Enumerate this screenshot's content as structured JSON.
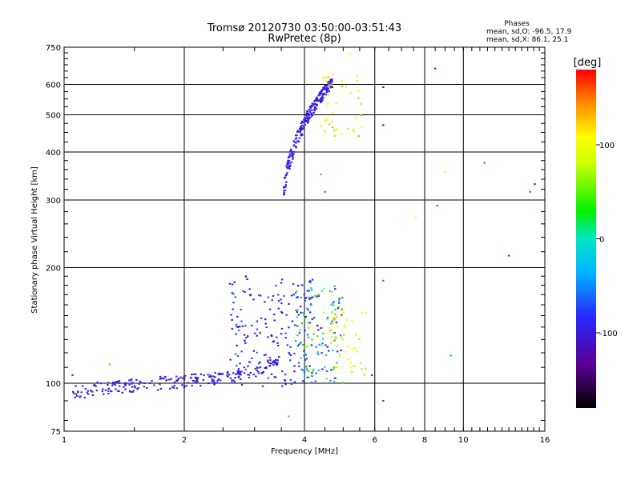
{
  "title_line1": "Tromsø 20120730 03:50:00-03:51:43",
  "title_line2": "RwPretec (8p)",
  "phases": {
    "heading": "Phases",
    "line_o": "mean, sd,O: -96.5, 17.9",
    "line_x": "mean, sd,X:  86.1, 25.1"
  },
  "colorbar": {
    "unit": "[deg]",
    "ticks": [
      "100",
      "0",
      "-100"
    ],
    "tick_values": [
      100,
      0,
      -100
    ],
    "range": [
      -180,
      180
    ]
  },
  "chart_data": {
    "type": "scatter",
    "xlabel": "Frequency [MHz]",
    "ylabel": "Stationary phase Virtual Height [km]",
    "x_scale": "log",
    "y_scale": "log",
    "xlim": [
      1,
      16
    ],
    "ylim": [
      75,
      750
    ],
    "x_ticks": [
      "1",
      "2",
      "4",
      "6",
      "8",
      "10",
      "16"
    ],
    "x_tick_values": [
      1,
      2,
      4,
      6,
      8,
      10,
      16
    ],
    "y_ticks": [
      "750",
      "600",
      "500",
      "400",
      "300",
      "200",
      "100",
      "75"
    ],
    "y_tick_values": [
      750,
      600,
      500,
      400,
      300,
      200,
      100,
      75
    ],
    "grid": true,
    "clusters": [
      {
        "name": "e-layer-trace",
        "x_range": [
          1.05,
          3.5
        ],
        "y_range": [
          90,
          118
        ],
        "phase_range": [
          -120,
          -80
        ],
        "count": 230
      },
      {
        "name": "es-spread-low",
        "x_range": [
          2.6,
          4.2
        ],
        "y_range": [
          98,
          190
        ],
        "phase_range": [
          -130,
          -60
        ],
        "count": 180
      },
      {
        "name": "es-spread-mid",
        "x_range": [
          3.8,
          5.0
        ],
        "y_range": [
          100,
          180
        ],
        "phase_range": [
          -120,
          80
        ],
        "count": 140
      },
      {
        "name": "es-spread-high",
        "x_range": [
          4.6,
          5.7
        ],
        "y_range": [
          105,
          160
        ],
        "phase_range": [
          60,
          140
        ],
        "count": 45
      },
      {
        "name": "f-layer-trace",
        "x_range": [
          3.55,
          4.7
        ],
        "y_range": [
          310,
          640
        ],
        "phase_range": [
          -110,
          -80
        ],
        "count": 260
      },
      {
        "name": "f-layer-x-mode",
        "x_range": [
          4.4,
          5.6
        ],
        "y_range": [
          430,
          640
        ],
        "phase_range": [
          70,
          150
        ],
        "count": 45
      }
    ],
    "outliers": [
      {
        "x": 6.3,
        "y": 590,
        "phase": -110
      },
      {
        "x": 6.3,
        "y": 470,
        "phase": -90
      },
      {
        "x": 8.5,
        "y": 660,
        "phase": -100
      },
      {
        "x": 8.6,
        "y": 290,
        "phase": -60
      },
      {
        "x": 9.3,
        "y": 118,
        "phase": -30
      },
      {
        "x": 11.3,
        "y": 375,
        "phase": -60
      },
      {
        "x": 13.0,
        "y": 215,
        "phase": -90
      },
      {
        "x": 14.7,
        "y": 315,
        "phase": -60
      },
      {
        "x": 15.1,
        "y": 330,
        "phase": -100
      },
      {
        "x": 7.6,
        "y": 270,
        "phase": 100
      },
      {
        "x": 9.0,
        "y": 355,
        "phase": 100
      },
      {
        "x": 5.2,
        "y": 720,
        "phase": 100
      },
      {
        "x": 6.3,
        "y": 90,
        "phase": -70
      },
      {
        "x": 1.3,
        "y": 112,
        "phase": 140
      },
      {
        "x": 1.05,
        "y": 105,
        "phase": -80
      },
      {
        "x": 3.65,
        "y": 82,
        "phase": 140
      },
      {
        "x": 4.4,
        "y": 350,
        "phase": 150
      },
      {
        "x": 4.5,
        "y": 315,
        "phase": -60
      },
      {
        "x": 5.9,
        "y": 105,
        "phase": -100
      },
      {
        "x": 6.3,
        "y": 185,
        "phase": -60
      }
    ]
  }
}
